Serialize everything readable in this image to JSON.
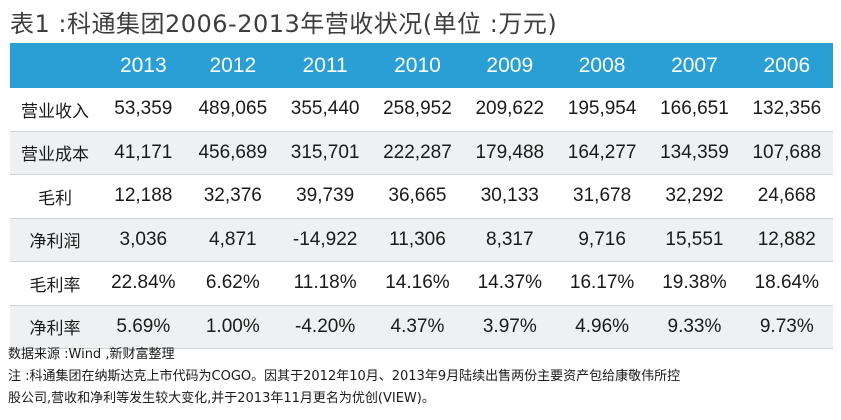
{
  "title": "表1 :科通集团2006-2013年营收状况(单位 :万元)",
  "table": {
    "columns": [
      "2013",
      "2012",
      "2011",
      "2010",
      "2009",
      "2008",
      "2007",
      "2006"
    ],
    "rows": [
      {
        "label": "营业收入",
        "values": [
          "53,359",
          "489,065",
          "355,440",
          "258,952",
          "209,622",
          "195,954",
          "166,651",
          "132,356"
        ]
      },
      {
        "label": "营业成本",
        "values": [
          "41,171",
          "456,689",
          "315,701",
          "222,287",
          "179,488",
          "164,277",
          "134,359",
          "107,688"
        ]
      },
      {
        "label": "毛利",
        "values": [
          "12,188",
          "32,376",
          "39,739",
          "36,665",
          "30,133",
          "31,678",
          "32,292",
          "24,668"
        ]
      },
      {
        "label": "净利润",
        "values": [
          "3,036",
          "4,871",
          "-14,922",
          "11,306",
          "8,317",
          "9,716",
          "15,551",
          "12,882"
        ]
      },
      {
        "label": "毛利率",
        "values": [
          "22.84%",
          "6.62%",
          "11.18%",
          "14.16%",
          "14.37%",
          "16.17%",
          "19.38%",
          "18.64%"
        ]
      },
      {
        "label": "净利率",
        "values": [
          "5.69%",
          "1.00%",
          "-4.20%",
          "4.37%",
          "3.97%",
          "4.96%",
          "9.33%",
          "9.73%"
        ]
      }
    ]
  },
  "notes": {
    "source": "数据来源 :Wind ,新财富整理",
    "note_line1": "注 :科通集团在纳斯达克上市代码为COGO。因其于2012年10月、2013年9月陆续出售两份主要资产包给康敬伟所控",
    "note_line2": "股公司,营收和净利等发生较大变化,并于2013年11月更名为优创(VIEW)。"
  },
  "colors": {
    "header_bg": "#2a9fd6",
    "header_text": "#ffffff",
    "stripe": "#eef0f1"
  }
}
